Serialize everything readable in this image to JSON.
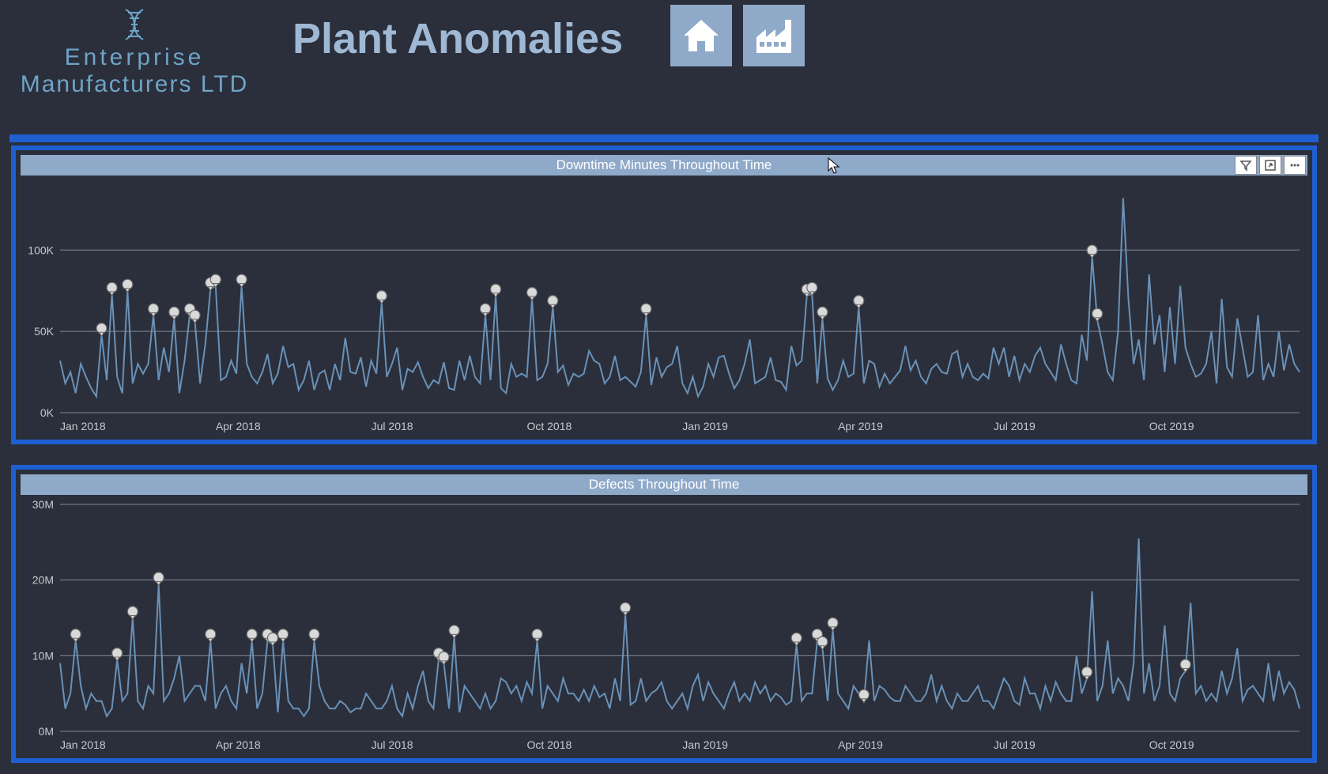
{
  "colors": {
    "page_bg": "#2a2f3b",
    "header_bg": "#2a2f3b",
    "title_color": "#9fb8d4",
    "logo_color": "#6fa3c7",
    "divider": "#1f5fd1",
    "chart_border": "#1f5fd1",
    "chart_title_bg": "#8fa9c9",
    "chart_title_text": "#ffffff",
    "nav_btn_bg": "#8fa9c9",
    "nav_icon": "#ffffff",
    "line": "#6a91b7",
    "grid": "#828892",
    "axis_text": "#c5c9d0",
    "marker_fill": "#d9d9d9",
    "marker_stroke": "#6b6b6b",
    "tool_btn_bg": "#ffffff"
  },
  "header": {
    "logo_line1": "Enterprise",
    "logo_line2": "Manufacturers LTD",
    "title": "Plant Anomalies",
    "nav": {
      "home": "home-icon",
      "factory": "factory-icon"
    }
  },
  "chart1": {
    "title": "Downtime Minutes Throughout Time",
    "type": "line",
    "toolbar": [
      "filter",
      "focus",
      "more"
    ],
    "y": {
      "ticks": [
        0,
        50000,
        100000
      ],
      "tick_labels": [
        "0K",
        "50K",
        "100K"
      ],
      "lim": [
        0,
        140000
      ]
    },
    "x": {
      "tick_indices": [
        0,
        30,
        60,
        90,
        120,
        150,
        180,
        210,
        240
      ],
      "tick_labels": [
        "Jan 2018",
        "Apr 2018",
        "Jul 2018",
        "Oct 2018",
        "Jan 2019",
        "Apr 2019",
        "Jul 2019",
        "Oct 2019",
        ""
      ]
    },
    "series": [
      32000,
      18000,
      25000,
      12000,
      30000,
      22000,
      15000,
      10000,
      48000,
      20000,
      73000,
      22000,
      12000,
      75000,
      18000,
      30000,
      24000,
      30000,
      60000,
      20000,
      40000,
      25000,
      58000,
      12000,
      32000,
      60000,
      56000,
      18000,
      42000,
      76000,
      78000,
      20000,
      22000,
      32000,
      24000,
      78000,
      30000,
      22000,
      18000,
      25000,
      36000,
      18000,
      24000,
      41000,
      28000,
      30000,
      14000,
      20000,
      32000,
      14000,
      24000,
      26000,
      14000,
      30000,
      20000,
      46000,
      25000,
      24000,
      34000,
      16000,
      32000,
      24000,
      68000,
      22000,
      30000,
      40000,
      14000,
      27000,
      25000,
      31000,
      22000,
      15000,
      20000,
      18000,
      31000,
      15000,
      14000,
      32000,
      20000,
      35000,
      22000,
      18000,
      60000,
      20000,
      72000,
      15000,
      12000,
      30000,
      22000,
      24000,
      22000,
      70000,
      20000,
      22000,
      30000,
      65000,
      25000,
      29000,
      17000,
      24000,
      22000,
      24000,
      38000,
      32000,
      30000,
      18000,
      22000,
      35000,
      20000,
      22000,
      19000,
      16000,
      25000,
      60000,
      17000,
      34000,
      22000,
      28000,
      30000,
      41000,
      18000,
      12000,
      22000,
      10000,
      16000,
      30000,
      22000,
      34000,
      35000,
      24000,
      15000,
      20000,
      30000,
      45000,
      18000,
      20000,
      22000,
      34000,
      20000,
      19000,
      14000,
      41000,
      29000,
      32000,
      72000,
      73000,
      18000,
      58000,
      21000,
      14000,
      20000,
      32000,
      22000,
      24000,
      65000,
      18000,
      32000,
      30000,
      16000,
      24000,
      18000,
      22000,
      26000,
      41000,
      26000,
      32000,
      22000,
      18000,
      27000,
      30000,
      25000,
      24000,
      36000,
      38000,
      22000,
      30000,
      22000,
      20000,
      24000,
      21000,
      40000,
      30000,
      40000,
      22000,
      35000,
      20000,
      30000,
      25000,
      35000,
      40000,
      30000,
      25000,
      20000,
      42000,
      30000,
      20000,
      18000,
      48000,
      32000,
      96000,
      57000,
      42000,
      25000,
      20000,
      50000,
      132000,
      70000,
      30000,
      45000,
      20000,
      85000,
      42000,
      60000,
      25000,
      65000,
      30000,
      78000,
      40000,
      30000,
      22000,
      24000,
      30000,
      50000,
      18000,
      70000,
      28000,
      22000,
      58000,
      40000,
      22000,
      25000,
      60000,
      20000,
      30000,
      22000,
      50000,
      26000,
      42000,
      30000,
      25000
    ],
    "anomalies": [
      8,
      10,
      13,
      18,
      22,
      25,
      26,
      29,
      30,
      35,
      62,
      82,
      84,
      91,
      95,
      113,
      144,
      145,
      147,
      154,
      199,
      200
    ]
  },
  "chart2": {
    "title": "Defects Throughout Time",
    "type": "line",
    "y": {
      "ticks": [
        0,
        10000000,
        20000000,
        30000000
      ],
      "tick_labels": [
        "0M",
        "10M",
        "20M",
        "30M"
      ],
      "lim": [
        0,
        30000000
      ]
    },
    "x": {
      "tick_indices": [
        0,
        30,
        60,
        90,
        120,
        150,
        180,
        210,
        240
      ],
      "tick_labels": [
        "Jan 2018",
        "Apr 2018",
        "Jul 2018",
        "Oct 2018",
        "Jan 2019",
        "Apr 2019",
        "Jul 2019",
        "Oct 2019",
        ""
      ]
    },
    "series": [
      9000000,
      3000000,
      5000000,
      12000000,
      6000000,
      3000000,
      5000000,
      4000000,
      4000000,
      2000000,
      3000000,
      9500000,
      4000000,
      5000000,
      15000000,
      4000000,
      3000000,
      6000000,
      5000000,
      19500000,
      4000000,
      5000000,
      7000000,
      10000000,
      4000000,
      5000000,
      6000000,
      6000000,
      4000000,
      12000000,
      3000000,
      5000000,
      6000000,
      4000000,
      3000000,
      9000000,
      5000000,
      12000000,
      3000000,
      5000000,
      12000000,
      11500000,
      2500000,
      12000000,
      4000000,
      3000000,
      3000000,
      2000000,
      3000000,
      12000000,
      6000000,
      4000000,
      3000000,
      3000000,
      4000000,
      3500000,
      2500000,
      3000000,
      3000000,
      5000000,
      4000000,
      3000000,
      3000000,
      4000000,
      6000000,
      3000000,
      2000000,
      5000000,
      3000000,
      6000000,
      8000000,
      4000000,
      3000000,
      9500000,
      9000000,
      3000000,
      12500000,
      2500000,
      6000000,
      5000000,
      4000000,
      3000000,
      5000000,
      3000000,
      4000000,
      7000000,
      6500000,
      5000000,
      6000000,
      4000000,
      6500000,
      5000000,
      12000000,
      3000000,
      6000000,
      5000000,
      4000000,
      7000000,
      5000000,
      5000000,
      4000000,
      5500000,
      4000000,
      6000000,
      4500000,
      5000000,
      3000000,
      7000000,
      4000000,
      15500000,
      3500000,
      4000000,
      7000000,
      4000000,
      5000000,
      5500000,
      6500000,
      4000000,
      3000000,
      4000000,
      5000000,
      3000000,
      6000000,
      7500000,
      4000000,
      6500000,
      5000000,
      4000000,
      3000000,
      5000000,
      6500000,
      4000000,
      5000000,
      4000000,
      6500000,
      5000000,
      6000000,
      4000000,
      5000000,
      4500000,
      3500000,
      4000000,
      11500000,
      4000000,
      5000000,
      5000000,
      12000000,
      11000000,
      4000000,
      13500000,
      5000000,
      4000000,
      3000000,
      6000000,
      5000000,
      4000000,
      12000000,
      4000000,
      6000000,
      5500000,
      4500000,
      4000000,
      4000000,
      6000000,
      5000000,
      4000000,
      4000000,
      5000000,
      7500000,
      4000000,
      6000000,
      4000000,
      3000000,
      5000000,
      4000000,
      4000000,
      5000000,
      6000000,
      4000000,
      4000000,
      3000000,
      5000000,
      7000000,
      6000000,
      4000000,
      3500000,
      7000000,
      5000000,
      5000000,
      3000000,
      6000000,
      4000000,
      6500000,
      5000000,
      4000000,
      4000000,
      10000000,
      5000000,
      7000000,
      18500000,
      4000000,
      6000000,
      12000000,
      5000000,
      7000000,
      6000000,
      4000000,
      9000000,
      25500000,
      5000000,
      9000000,
      4000000,
      6000000,
      14000000,
      5000000,
      4000000,
      7000000,
      8000000,
      17000000,
      5000000,
      6000000,
      4000000,
      5000000,
      4000000,
      8000000,
      5000000,
      7000000,
      11000000,
      4000000,
      5500000,
      6000000,
      5000000,
      4000000,
      9000000,
      4000000,
      8000000,
      5000000,
      6500000,
      5500000,
      3000000
    ],
    "anomalies": [
      3,
      11,
      14,
      19,
      29,
      37,
      40,
      41,
      43,
      49,
      73,
      74,
      76,
      92,
      109,
      142,
      146,
      147,
      149,
      155,
      198,
      217
    ]
  }
}
